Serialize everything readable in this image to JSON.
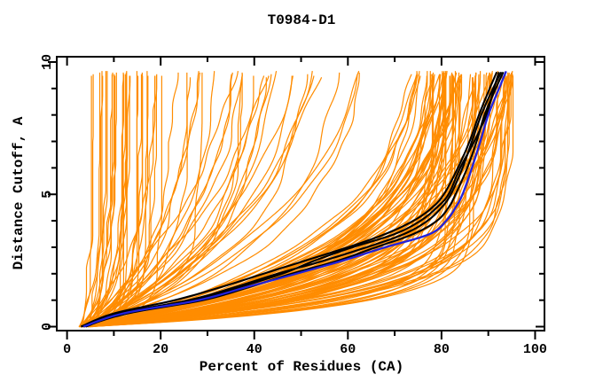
{
  "chart_data": {
    "type": "line",
    "title": "T0984-D1",
    "xlabel": "Percent of Residues (CA)",
    "ylabel": "Distance Cutoff, A",
    "xlim": [
      -2.2,
      102
    ],
    "ylim": [
      -0.15,
      10.2
    ],
    "x_ticks_major": [
      0,
      20,
      40,
      60,
      80,
      100
    ],
    "x_ticks_minor": [
      10,
      30,
      50,
      70,
      90
    ],
    "y_ticks_major": [
      0,
      5,
      10
    ],
    "y_ticks_minor": [
      1,
      2,
      3,
      4,
      6,
      7,
      8,
      9
    ],
    "grid": false,
    "legend": "none",
    "colors": {
      "model_curves": "#FF8C00",
      "highlight_curves": "#000000",
      "reference_curve": "#2222DD",
      "axis": "#000000",
      "background": "#FFFFFF"
    },
    "description": "GDT-style plot: per-model curves of percent of CA residues fit under each distance cutoff; ~150 orange model curves, 4 black highlighted model curves, 1 blue reference curve",
    "p_start_range": [
      2.5,
      5.5
    ],
    "end_cutoff_range": [
      9.45,
      9.7
    ],
    "jitter": {
      "amp1": 0.45,
      "amp2": 0.22
    },
    "seed": 20984,
    "orange_groups": [
      {
        "name": "failed",
        "count": 30,
        "pmax": [
          4.5,
          20
        ],
        "tau": [
          0.4,
          1.6
        ]
      },
      {
        "name": "low",
        "count": 12,
        "pmax": [
          20,
          40
        ],
        "tau": [
          1.2,
          4.0
        ]
      },
      {
        "name": "mid",
        "count": 18,
        "pmax": [
          40,
          72
        ],
        "tau": [
          2.5,
          6.5
        ]
      },
      {
        "name": "good",
        "count": 80,
        "pmax": [
          76,
          96
        ],
        "tau": [
          1.15,
          3.2
        ]
      },
      {
        "name": "best_right",
        "count": 4,
        "pmax": [
          95,
          99
        ],
        "tau": [
          2.2,
          3.2
        ]
      },
      {
        "name": "excellent",
        "count": 8,
        "pmax": [
          80,
          90
        ],
        "tau": [
          0.72,
          1.05
        ]
      }
    ],
    "series_explicit": [
      {
        "name": "black-model-1",
        "color_key": "highlight_curves",
        "width": 2.1,
        "points": [
          [
            0,
            3
          ],
          [
            0.5,
            11
          ],
          [
            1,
            26
          ],
          [
            1.5,
            36
          ],
          [
            2,
            45
          ],
          [
            2.5,
            55
          ],
          [
            3,
            64
          ],
          [
            3.5,
            72
          ],
          [
            4,
            77
          ],
          [
            4.5,
            80
          ],
          [
            5,
            82
          ],
          [
            6,
            84.5
          ],
          [
            7,
            86.5
          ],
          [
            8,
            88.5
          ],
          [
            9,
            91
          ],
          [
            9.62,
            92.8
          ]
        ]
      },
      {
        "name": "black-model-2",
        "color_key": "highlight_curves",
        "width": 2.1,
        "points": [
          [
            0,
            3.5
          ],
          [
            0.5,
            13
          ],
          [
            1,
            29
          ],
          [
            1.5,
            39
          ],
          [
            2,
            48
          ],
          [
            2.5,
            58
          ],
          [
            3,
            66
          ],
          [
            3.5,
            74
          ],
          [
            4,
            79
          ],
          [
            4.5,
            81.5
          ],
          [
            5,
            83
          ],
          [
            6,
            85.5
          ],
          [
            7,
            87.5
          ],
          [
            8,
            89.2
          ],
          [
            9,
            91.6
          ],
          [
            9.62,
            93.2
          ]
        ]
      },
      {
        "name": "black-model-3",
        "color_key": "highlight_curves",
        "width": 2.1,
        "points": [
          [
            0,
            3
          ],
          [
            0.5,
            10
          ],
          [
            1,
            23
          ],
          [
            1.5,
            33
          ],
          [
            2,
            42
          ],
          [
            2.5,
            51
          ],
          [
            3,
            60
          ],
          [
            3.5,
            68
          ],
          [
            4,
            74
          ],
          [
            4.5,
            78
          ],
          [
            5,
            80.5
          ],
          [
            6,
            83.5
          ],
          [
            7,
            86
          ],
          [
            8,
            88
          ],
          [
            9,
            90.3
          ],
          [
            9.62,
            91.8
          ]
        ]
      },
      {
        "name": "black-model-4",
        "color_key": "highlight_curves",
        "width": 2.1,
        "points": [
          [
            0,
            4
          ],
          [
            0.5,
            12
          ],
          [
            1,
            27
          ],
          [
            1.5,
            37
          ],
          [
            2,
            46
          ],
          [
            2.5,
            53
          ],
          [
            3,
            61
          ],
          [
            3.5,
            70
          ],
          [
            4,
            75.5
          ],
          [
            4.5,
            79
          ],
          [
            5,
            81.5
          ],
          [
            6,
            84
          ],
          [
            7,
            87
          ],
          [
            8,
            89.6
          ],
          [
            9,
            91.2
          ],
          [
            9.62,
            92.3
          ]
        ]
      },
      {
        "name": "blue-reference",
        "color_key": "reference_curve",
        "width": 2.3,
        "points": [
          [
            0,
            3.5
          ],
          [
            0.5,
            12
          ],
          [
            1,
            28
          ],
          [
            1.5,
            38.5
          ],
          [
            2,
            49
          ],
          [
            2.5,
            59
          ],
          [
            3,
            68
          ],
          [
            3.5,
            77.5
          ],
          [
            4,
            81
          ],
          [
            4.5,
            83
          ],
          [
            5,
            84.5
          ],
          [
            6,
            86.5
          ],
          [
            7,
            88.3
          ],
          [
            8,
            90
          ],
          [
            9,
            92.3
          ],
          [
            9.65,
            93.8
          ]
        ]
      }
    ]
  }
}
